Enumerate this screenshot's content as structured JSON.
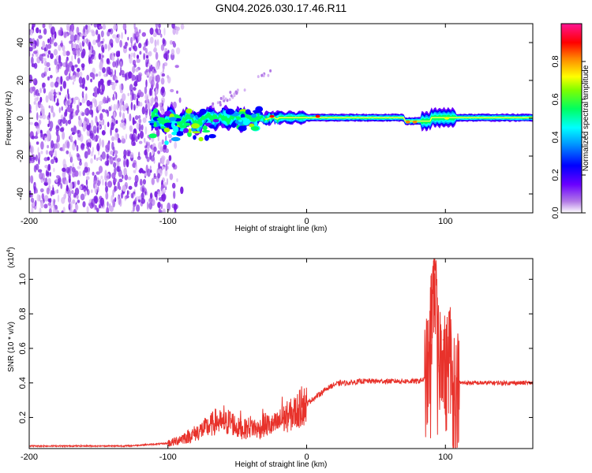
{
  "figure_title": "GN04.2026.030.17.46.R11",
  "chart_data": [
    {
      "type": "heatmap",
      "name": "spectrogram",
      "title": "GN04.2026.030.17.46.R11",
      "xlabel": "Height of straight line (km)",
      "ylabel": "Frequency (Hz)",
      "xlim": [
        -200,
        163
      ],
      "ylim": [
        -50,
        50
      ],
      "xticks": [
        -200,
        -100,
        0,
        100
      ],
      "xtick_labels": [
        "-200",
        "-100",
        "0",
        "100"
      ],
      "yticks": [
        -40,
        -20,
        0,
        20,
        40
      ],
      "ytick_labels": [
        "-40",
        "-20",
        "0",
        "20",
        "40"
      ],
      "colorbar": {
        "label": "Normalized spectral amplitude",
        "range": [
          0,
          1
        ],
        "ticks": [
          0.0,
          0.2,
          0.4,
          0.6,
          0.8
        ],
        "tick_labels": [
          "0.0",
          "0.2",
          "0.4",
          "0.6",
          "0.8"
        ],
        "colormap": [
          "#ffffff",
          "#8a2be2",
          "#0000ff",
          "#00ffff",
          "#00ff00",
          "#ffff00",
          "#ff8000",
          "#ff0000",
          "#ff1493"
        ]
      },
      "features": {
        "noise_region_x": [
          -200,
          -97
        ],
        "signal_band_x": [
          -112,
          163
        ],
        "signal_center_frequency": 0,
        "strong_points": [
          {
            "x": -25,
            "f": 1,
            "amplitude": 0.95
          },
          {
            "x": 8,
            "f": 1,
            "amplitude": 0.95
          },
          {
            "x": 73,
            "f": -2,
            "amplitude": 0.92
          },
          {
            "x": 78,
            "f": -2,
            "amplitude": 0.9
          },
          {
            "x": 101,
            "f": 0,
            "amplitude": 0.8
          }
        ],
        "dispersed_region_x": [
          -90,
          90
        ]
      }
    },
    {
      "type": "line",
      "name": "snr",
      "xlabel": "Height of straight line (km)",
      "ylabel": "SNR (10 * v/v)",
      "yscale_label": "(x10",
      "yscale_exponent": "4",
      "line_color": "#e8322b",
      "xlim": [
        -200,
        163
      ],
      "ylim": [
        0.02,
        1.12
      ],
      "xticks": [
        -200,
        -100,
        0,
        100
      ],
      "xtick_labels": [
        "-200",
        "-100",
        "0",
        "100"
      ],
      "yticks": [
        0.2,
        0.4,
        0.6,
        0.8,
        1.0
      ],
      "ytick_labels": [
        "0.2",
        "0.4",
        "0.6",
        "0.8",
        "1.0"
      ],
      "x": [
        -200,
        -190,
        -180,
        -170,
        -160,
        -150,
        -140,
        -130,
        -120,
        -110,
        -100,
        -95,
        -90,
        -85,
        -80,
        -75,
        -70,
        -65,
        -60,
        -55,
        -50,
        -45,
        -40,
        -35,
        -30,
        -25,
        -20,
        -15,
        -10,
        -5,
        0,
        5,
        10,
        15,
        20,
        25,
        30,
        40,
        50,
        60,
        70,
        80,
        85,
        88,
        90,
        92,
        95,
        98,
        100,
        103,
        106,
        110,
        120,
        130,
        140,
        150,
        163
      ],
      "y": [
        0.035,
        0.035,
        0.035,
        0.035,
        0.035,
        0.035,
        0.035,
        0.035,
        0.04,
        0.045,
        0.05,
        0.06,
        0.08,
        0.09,
        0.11,
        0.13,
        0.15,
        0.18,
        0.16,
        0.18,
        0.14,
        0.13,
        0.15,
        0.13,
        0.16,
        0.15,
        0.17,
        0.2,
        0.22,
        0.25,
        0.28,
        0.31,
        0.34,
        0.37,
        0.39,
        0.4,
        0.4,
        0.41,
        0.41,
        0.41,
        0.41,
        0.41,
        0.42,
        0.45,
        0.8,
        1.05,
        0.5,
        0.65,
        0.4,
        0.6,
        0.3,
        0.4,
        0.4,
        0.4,
        0.4,
        0.4,
        0.4
      ],
      "spikes": [
        {
          "x": -60,
          "value": 0.27
        },
        {
          "x": -48,
          "value": 0.24
        },
        {
          "x": -32,
          "value": 0.25
        },
        {
          "x": -18,
          "value": 0.32
        },
        {
          "x": -4,
          "value": 0.38
        },
        {
          "x": 90,
          "value": 0.94
        },
        {
          "x": 92,
          "value": 1.12
        },
        {
          "x": 95,
          "value": 0.5
        },
        {
          "x": 98,
          "value": 0.65
        },
        {
          "x": 103,
          "value": 0.74
        },
        {
          "x": 106,
          "value": 0.66
        }
      ],
      "dips": [
        {
          "x": 89,
          "value": 0.08
        },
        {
          "x": 94,
          "value": 0.1
        },
        {
          "x": 100,
          "value": 0.12
        },
        {
          "x": 105,
          "value": 0.09
        }
      ]
    }
  ]
}
